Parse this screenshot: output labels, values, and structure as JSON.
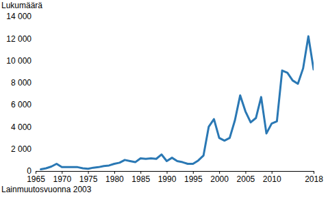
{
  "chart_data": {
    "type": "line",
    "y_label": "Lukumäärä",
    "annotation": "Lainmuutosvuonna 2003",
    "x": [
      1966,
      1967,
      1968,
      1969,
      1970,
      1971,
      1972,
      1973,
      1974,
      1975,
      1976,
      1977,
      1978,
      1979,
      1980,
      1981,
      1982,
      1983,
      1984,
      1985,
      1986,
      1987,
      1988,
      1989,
      1990,
      1991,
      1992,
      1993,
      1994,
      1995,
      1996,
      1997,
      1998,
      1999,
      2000,
      2001,
      2002,
      2003,
      2004,
      2005,
      2006,
      2007,
      2008,
      2009,
      2010,
      2011,
      2012,
      2013,
      2014,
      2015,
      2016,
      2017,
      2018
    ],
    "values": [
      150,
      250,
      400,
      650,
      350,
      350,
      350,
      350,
      250,
      200,
      300,
      350,
      450,
      500,
      650,
      750,
      1000,
      900,
      800,
      1150,
      1100,
      1150,
      1100,
      1500,
      900,
      1200,
      900,
      800,
      650,
      650,
      950,
      1400,
      4000,
      4700,
      3000,
      2750,
      3000,
      4600,
      6850,
      5400,
      4400,
      4800,
      6700,
      3400,
      4300,
      4500,
      9100,
      8900,
      8200,
      7900,
      9300,
      12200,
      9200
    ],
    "color": "#2a78b4",
    "xlim": [
      1965,
      2018
    ],
    "xticks": [
      1965,
      1970,
      1975,
      1980,
      1985,
      1990,
      1995,
      2000,
      2005,
      2010,
      2018
    ],
    "ylim": [
      0,
      14000
    ],
    "yticks": [
      0,
      {
        "value": 2000,
        "label": "2 000"
      },
      {
        "value": 4000,
        "label": "4 000"
      },
      {
        "value": 6000,
        "label": "6 000"
      },
      {
        "value": 8000,
        "label": "8 000"
      },
      {
        "value": 10000,
        "label": "10 000"
      },
      {
        "value": 12000,
        "label": "12 000"
      },
      {
        "value": 14000,
        "label": "14 000"
      }
    ],
    "grid": false
  }
}
